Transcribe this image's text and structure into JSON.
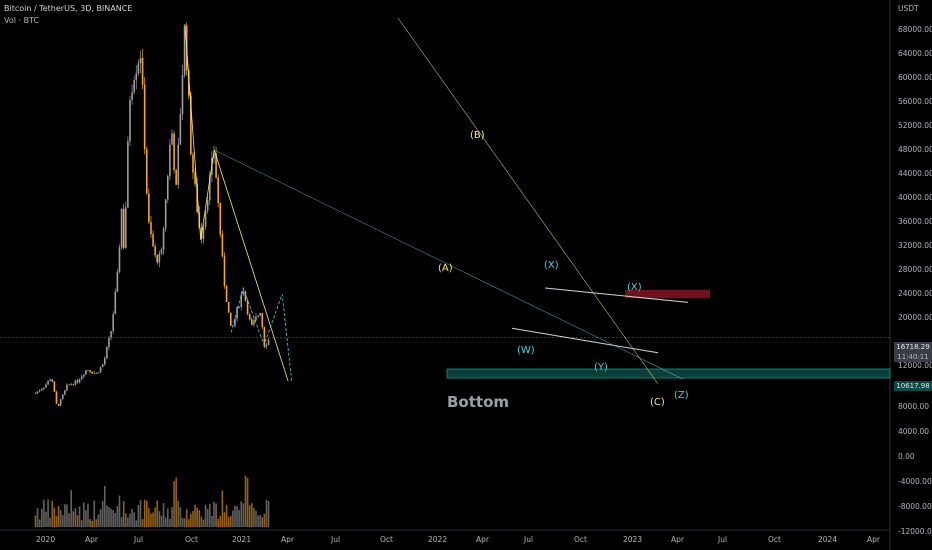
{
  "header": {
    "symbol_line": "Bitcoin / TetherUS, 3D, BINANCE",
    "volume_line": "Vol · BTC"
  },
  "price_axis": {
    "currency": "USDT",
    "labels": [
      "68000.00",
      "64000.00",
      "60000.00",
      "56000.00",
      "52000.00",
      "48000.00",
      "44000.00",
      "40000.00",
      "36000.00",
      "32000.00",
      "28000.00",
      "24000.00",
      "20000.00",
      "12000.00",
      "8000.00",
      "4000.00",
      "0.00",
      "-4000.00",
      "-8000.00",
      "-12000.00"
    ]
  },
  "time_axis": {
    "labels": [
      "2020",
      "Apr",
      "Jul",
      "Oct",
      "2021",
      "Apr",
      "Jul",
      "Oct",
      "2022",
      "Apr",
      "Jul",
      "Oct",
      "2023",
      "Apr",
      "Jul",
      "Oct",
      "2024",
      "Apr"
    ]
  },
  "price_tags": {
    "last_price": "16718.29",
    "countdown": "11:40:11",
    "bottom_level": "10617.98"
  },
  "annotations": {
    "wave_A": "(A)",
    "wave_B": "(B)",
    "wave_C": "(C)",
    "wave_W": "(W)",
    "wave_X1": "(X)",
    "wave_Y": "(Y)",
    "wave_X2": "(X)",
    "wave_Z": "(Z)",
    "bottom_label": "Bottom"
  },
  "colors": {
    "background": "#000000",
    "candle_up": "#9e9e9e",
    "candle_down": "#f7a531",
    "wave_abc": "#f5e97a",
    "wave_wxy": "#4fd1d9",
    "support_zone": "#0d4a44",
    "resistance_zone": "#7a1521",
    "wedge_line": "#d1d4dc"
  },
  "chart_data": {
    "type": "candlestick",
    "title": "Bitcoin / TetherUS, 3D, BINANCE",
    "price_path_usdt": [
      [
        "2019-12-01",
        7500
      ],
      [
        "2020-01-15",
        8700
      ],
      [
        "2020-02-15",
        10200
      ],
      [
        "2020-03-13",
        5000
      ],
      [
        "2020-05-01",
        8800
      ],
      [
        "2020-06-15",
        9400
      ],
      [
        "2020-08-01",
        11500
      ],
      [
        "2020-09-15",
        10700
      ],
      [
        "2020-10-20",
        12500
      ],
      [
        "2020-11-25",
        18000
      ],
      [
        "2020-12-31",
        29000
      ],
      [
        "2021-01-10",
        40000
      ],
      [
        "2021-01-25",
        31000
      ],
      [
        "2021-02-21",
        57000
      ],
      [
        "2021-03-13",
        61000
      ],
      [
        "2021-04-14",
        64500
      ],
      [
        "2021-05-19",
        36000
      ],
      [
        "2021-06-22",
        30000
      ],
      [
        "2021-07-20",
        30000
      ],
      [
        "2021-09-07",
        52000
      ],
      [
        "2021-09-29",
        41000
      ],
      [
        "2021-11-10",
        69000
      ],
      [
        "2021-12-10",
        47000
      ],
      [
        "2022-01-24",
        33000
      ],
      [
        "2022-03-29",
        48000
      ],
      [
        "2022-05-12",
        27000
      ],
      [
        "2022-06-18",
        17600
      ],
      [
        "2022-08-14",
        25000
      ],
      [
        "2022-09-20",
        18300
      ],
      [
        "2022-11-05",
        21400
      ],
      [
        "2022-11-21",
        15500
      ],
      [
        "2022-12-22",
        16718
      ]
    ],
    "elliott_waves": {
      "abc": [
        [
          "2021-11-10",
          69000,
          ""
        ],
        [
          "2022-01-24",
          33000,
          "(A)"
        ],
        [
          "2022-03-29",
          48000,
          "(B)"
        ],
        [
          "2023-03-15",
          9500,
          "(C)"
        ]
      ],
      "wxyxz": [
        [
          "2022-06-18",
          17600,
          "(W)"
        ],
        [
          "2022-08-14",
          25000,
          "(X)"
        ],
        [
          "2022-11-21",
          15500,
          "(Y)"
        ],
        [
          "2023-02-15",
          24000,
          "(X)"
        ],
        [
          "2023-04-01",
          9500,
          "(Z)"
        ]
      ]
    },
    "zones": [
      {
        "name": "Bottom",
        "from": 10000,
        "to": 11500
      },
      {
        "name": "resistance",
        "from": 23300,
        "to": 24700
      }
    ]
  }
}
